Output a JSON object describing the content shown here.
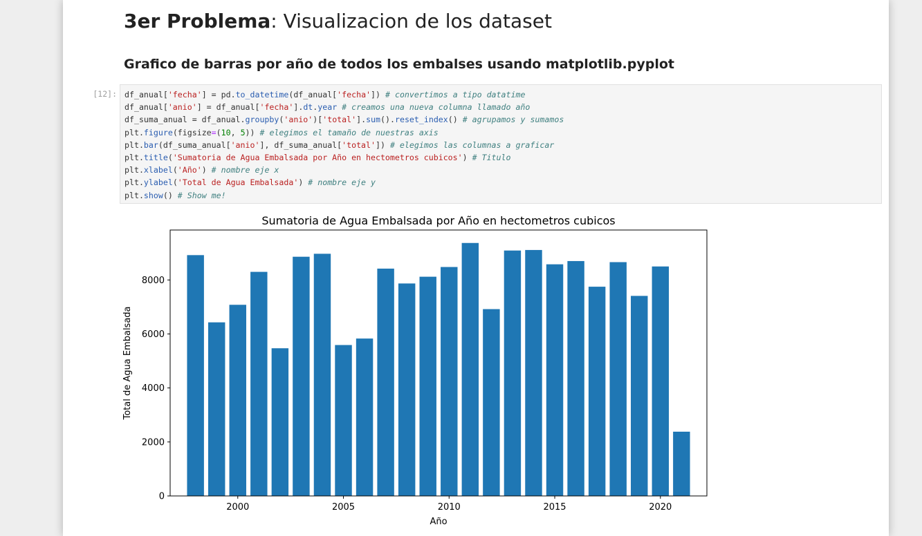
{
  "heading": {
    "title_bold": "3er Problema",
    "title_rest": ": Visualizacion de los dataset",
    "subtitle": "Grafico de barras por año de todos los embalses usando matplotlib.pyplot"
  },
  "cell": {
    "prompt": "[12]:",
    "lines": [
      [
        [
          "kv",
          "df_anual["
        ],
        [
          "st",
          "'fecha'"
        ],
        [
          "kv",
          "] = pd."
        ],
        [
          "fn",
          "to_datetime"
        ],
        [
          "kv",
          "(df_anual["
        ],
        [
          "st",
          "'fecha'"
        ],
        [
          "kv",
          "]) "
        ],
        [
          "cm",
          "# convertimos a tipo datatime"
        ]
      ],
      [
        [
          "kv",
          "df_anual["
        ],
        [
          "st",
          "'anio'"
        ],
        [
          "kv",
          "] = df_anual["
        ],
        [
          "st",
          "'fecha'"
        ],
        [
          "kv",
          "]."
        ],
        [
          "fn",
          "dt"
        ],
        [
          "kv",
          "."
        ],
        [
          "fn",
          "year"
        ],
        [
          "kv",
          " "
        ],
        [
          "cm",
          "# creamos una nueva columna llamado año"
        ]
      ],
      [
        [
          "kv",
          "df_suma_anual = df_anual."
        ],
        [
          "fn",
          "groupby"
        ],
        [
          "kv",
          "("
        ],
        [
          "st",
          "'anio'"
        ],
        [
          "kv",
          ")["
        ],
        [
          "st",
          "'total'"
        ],
        [
          "kv",
          "]."
        ],
        [
          "fn",
          "sum"
        ],
        [
          "kv",
          "()."
        ],
        [
          "fn",
          "reset_index"
        ],
        [
          "kv",
          "() "
        ],
        [
          "cm",
          "# agrupamos y sumamos"
        ]
      ],
      [
        [
          "kv",
          "plt."
        ],
        [
          "fn",
          "figure"
        ],
        [
          "kv",
          "(figsize"
        ],
        [
          "op",
          "="
        ],
        [
          "kv",
          "("
        ],
        [
          "nm",
          "10"
        ],
        [
          "kv",
          ", "
        ],
        [
          "nm",
          "5"
        ],
        [
          "kv",
          ")) "
        ],
        [
          "cm",
          "# elegimos el tamaño de nuestras axis"
        ]
      ],
      [
        [
          "kv",
          "plt."
        ],
        [
          "fn",
          "bar"
        ],
        [
          "kv",
          "(df_suma_anual["
        ],
        [
          "st",
          "'anio'"
        ],
        [
          "kv",
          "], df_suma_anual["
        ],
        [
          "st",
          "'total'"
        ],
        [
          "kv",
          "]) "
        ],
        [
          "cm",
          "# elegimos las columnas a graficar"
        ]
      ],
      [
        [
          "kv",
          "plt."
        ],
        [
          "fn",
          "title"
        ],
        [
          "kv",
          "("
        ],
        [
          "st",
          "'Sumatoria de Agua Embalsada por Año en hectometros cubicos'"
        ],
        [
          "kv",
          ") "
        ],
        [
          "cm",
          "# Titulo"
        ]
      ],
      [
        [
          "kv",
          "plt."
        ],
        [
          "fn",
          "xlabel"
        ],
        [
          "kv",
          "("
        ],
        [
          "st",
          "'Año'"
        ],
        [
          "kv",
          ") "
        ],
        [
          "cm",
          "# nombre eje x"
        ]
      ],
      [
        [
          "kv",
          "plt."
        ],
        [
          "fn",
          "ylabel"
        ],
        [
          "kv",
          "("
        ],
        [
          "st",
          "'Total de Agua Embalsada'"
        ],
        [
          "kv",
          ") "
        ],
        [
          "cm",
          "# nombre eje y"
        ]
      ],
      [
        [
          "kv",
          "plt."
        ],
        [
          "fn",
          "show"
        ],
        [
          "kv",
          "() "
        ],
        [
          "cm",
          "# Show me!"
        ]
      ]
    ]
  },
  "chart_data": {
    "type": "bar",
    "title": "Sumatoria de Agua Embalsada por Año en hectometros cubicos",
    "xlabel": "Año",
    "ylabel": "Total de Agua Embalsada",
    "x": [
      1998,
      1999,
      2000,
      2001,
      2002,
      2003,
      2004,
      2005,
      2006,
      2007,
      2008,
      2009,
      2010,
      2011,
      2012,
      2013,
      2014,
      2015,
      2016,
      2017,
      2018,
      2019,
      2020,
      2021
    ],
    "values": [
      8920,
      6430,
      7080,
      8300,
      5470,
      8860,
      8970,
      5590,
      5830,
      8420,
      7870,
      8120,
      8480,
      9370,
      6920,
      9090,
      9110,
      8580,
      8700,
      7750,
      8660,
      7410,
      8500,
      2380
    ],
    "xticks": [
      2000,
      2005,
      2010,
      2015,
      2020
    ],
    "yticks": [
      0,
      2000,
      4000,
      6000,
      8000
    ],
    "xlim": [
      1996.8,
      2022.2
    ],
    "ylim": [
      0,
      9850
    ],
    "bar_color": "#1f77b4",
    "grid": false
  }
}
